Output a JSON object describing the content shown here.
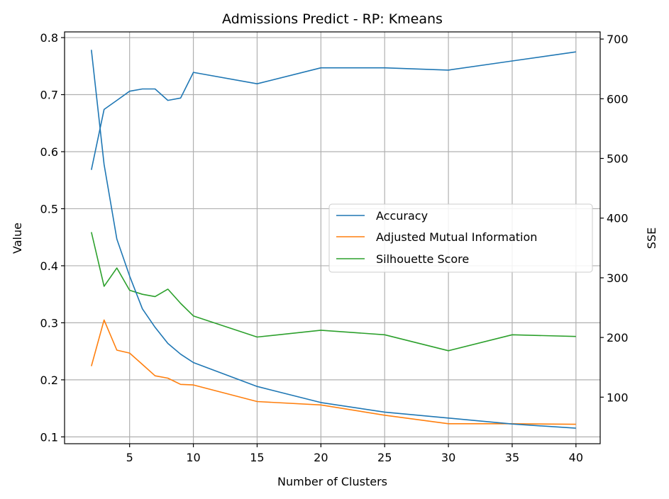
{
  "chart_data": {
    "type": "line",
    "title": "Admissions Predict - RP: Kmeans",
    "xlabel": "Number of Clusters",
    "ylabel": "Value",
    "y2label": "SSE",
    "grid": true,
    "legend_position": "center-right",
    "xlim": [
      -0.1,
      41.9
    ],
    "ylim": [
      0.088,
      0.81
    ],
    "y2lim": [
      22,
      712
    ],
    "x_ticks": [
      5,
      10,
      15,
      20,
      25,
      30,
      35,
      40
    ],
    "y_ticks": [
      0.1,
      0.2,
      0.3,
      0.4,
      0.5,
      0.6,
      0.7,
      0.8
    ],
    "y2_ticks": [
      100,
      200,
      300,
      400,
      500,
      600,
      700
    ],
    "x": [
      2,
      3,
      4,
      5,
      6,
      7,
      8,
      9,
      10,
      15,
      20,
      25,
      30,
      35,
      40
    ],
    "series": [
      {
        "name": "Accuracy",
        "axis": "left",
        "color": "#1f77b4",
        "values": [
          0.568,
          0.674,
          0.69,
          0.706,
          0.71,
          0.71,
          0.69,
          0.694,
          0.739,
          0.719,
          0.747,
          0.747,
          0.743,
          0.759,
          0.775
        ]
      },
      {
        "name": "Adjusted Mutual Information",
        "axis": "left",
        "color": "#ff7f0e",
        "values": [
          0.224,
          0.305,
          0.252,
          0.247,
          0.227,
          0.207,
          0.203,
          0.192,
          0.191,
          0.162,
          0.156,
          0.138,
          0.123,
          0.123,
          0.122
        ]
      },
      {
        "name": "Silhouette Score",
        "axis": "left",
        "color": "#2ca02c",
        "values": [
          0.459,
          0.364,
          0.396,
          0.357,
          0.35,
          0.346,
          0.359,
          0.334,
          0.312,
          0.275,
          0.287,
          0.279,
          0.251,
          0.279,
          0.276
        ]
      },
      {
        "axis": "right",
        "color": "#1f77b4",
        "values": [
          682,
          490,
          365,
          303,
          248,
          217,
          190,
          172,
          158,
          118,
          91,
          75,
          65,
          55,
          48
        ]
      }
    ]
  }
}
